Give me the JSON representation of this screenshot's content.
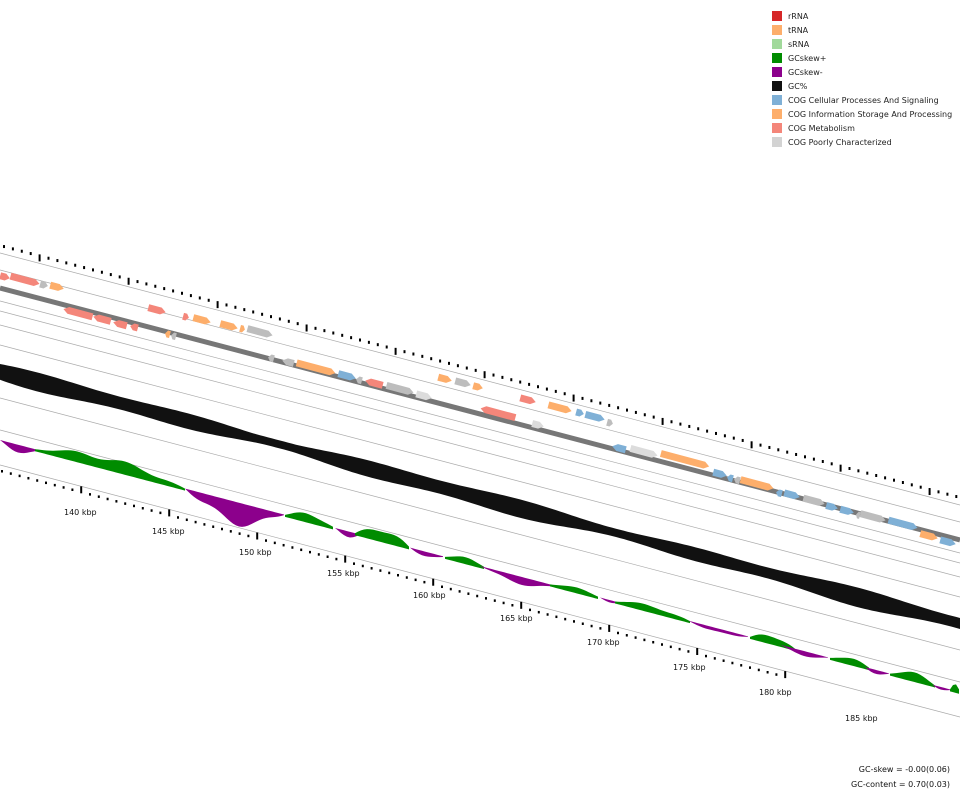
{
  "legend": {
    "items": [
      {
        "label": "rRNA",
        "color": "#d62728"
      },
      {
        "label": "tRNA",
        "color": "#fdae6b"
      },
      {
        "label": "sRNA",
        "color": "#a1d99b"
      },
      {
        "label": "GCskew+",
        "color": "#008c00"
      },
      {
        "label": "GCskew-",
        "color": "#8c008c"
      },
      {
        "label": "GC%",
        "color": "#111111"
      },
      {
        "label": "COG Cellular Processes And Signaling",
        "color": "#7fb0d6"
      },
      {
        "label": "COG Information Storage And Processing",
        "color": "#fdae6b"
      },
      {
        "label": "COG Metabolism",
        "color": "#f4867a"
      },
      {
        "label": "COG Poorly Characterized",
        "color": "#d3d3d3"
      }
    ]
  },
  "axis": {
    "unit": "kbp",
    "ticks": [
      "140 kbp",
      "145 kbp",
      "150 kbp",
      "155 kbp",
      "160 kbp",
      "165 kbp",
      "170 kbp",
      "175 kbp",
      "180 kbp",
      "185 kbp"
    ]
  },
  "stats": {
    "gc_skew": "GC-skew = -0.00(0.06)",
    "gc_content": "GC-content = 0.70(0.03)"
  },
  "colors": {
    "metabolism": "#f4867a",
    "info": "#fdae6b",
    "cellular": "#7fb0d6",
    "poorly": "#bdbdbd",
    "poorly_light": "#dcdcdc",
    "gc": "#111111",
    "skew_pos": "#008c00",
    "skew_neg": "#8c008c",
    "backbone": "#777777"
  }
}
